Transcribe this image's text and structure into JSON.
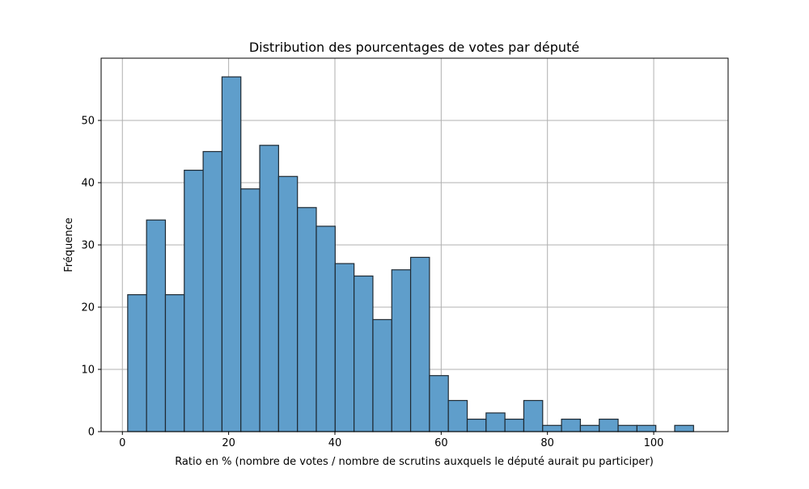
{
  "chart_data": {
    "type": "bar",
    "title": "Distribution des pourcentages de votes par député",
    "xlabel": "Ratio en % (nombre de votes / nombre de scrutins auxquels le député aurait pu participer)",
    "ylabel": "Fréquence",
    "xlim": [
      -4,
      114
    ],
    "ylim": [
      0,
      60
    ],
    "xticks": [
      0,
      20,
      40,
      60,
      80,
      100
    ],
    "yticks": [
      0,
      10,
      20,
      30,
      40,
      50
    ],
    "grid": true,
    "bar_color": "#5f9ecb",
    "edge_color": "#1f2a33",
    "bins": [
      {
        "x0": 1.0,
        "x1": 4.55,
        "value": 22
      },
      {
        "x0": 4.55,
        "x1": 8.1,
        "value": 34
      },
      {
        "x0": 8.1,
        "x1": 11.65,
        "value": 22
      },
      {
        "x0": 11.65,
        "x1": 15.2,
        "value": 42
      },
      {
        "x0": 15.2,
        "x1": 18.75,
        "value": 45
      },
      {
        "x0": 18.75,
        "x1": 22.3,
        "value": 57
      },
      {
        "x0": 22.3,
        "x1": 25.85,
        "value": 39
      },
      {
        "x0": 25.85,
        "x1": 29.4,
        "value": 46
      },
      {
        "x0": 29.4,
        "x1": 32.95,
        "value": 41
      },
      {
        "x0": 32.95,
        "x1": 36.5,
        "value": 36
      },
      {
        "x0": 36.5,
        "x1": 40.05,
        "value": 33
      },
      {
        "x0": 40.05,
        "x1": 43.6,
        "value": 27
      },
      {
        "x0": 43.6,
        "x1": 47.15,
        "value": 25
      },
      {
        "x0": 47.15,
        "x1": 50.7,
        "value": 18
      },
      {
        "x0": 50.7,
        "x1": 54.25,
        "value": 26
      },
      {
        "x0": 54.25,
        "x1": 57.8,
        "value": 28
      },
      {
        "x0": 57.8,
        "x1": 61.35,
        "value": 9
      },
      {
        "x0": 61.35,
        "x1": 64.9,
        "value": 5
      },
      {
        "x0": 64.9,
        "x1": 68.45,
        "value": 2
      },
      {
        "x0": 68.45,
        "x1": 72.0,
        "value": 3
      },
      {
        "x0": 72.0,
        "x1": 75.55,
        "value": 2
      },
      {
        "x0": 75.55,
        "x1": 79.1,
        "value": 5
      },
      {
        "x0": 79.1,
        "x1": 82.65,
        "value": 1
      },
      {
        "x0": 82.65,
        "x1": 86.2,
        "value": 2
      },
      {
        "x0": 86.2,
        "x1": 89.75,
        "value": 1
      },
      {
        "x0": 89.75,
        "x1": 93.3,
        "value": 2
      },
      {
        "x0": 93.3,
        "x1": 96.85,
        "value": 1
      },
      {
        "x0": 96.85,
        "x1": 100.4,
        "value": 1
      },
      {
        "x0": 100.4,
        "x1": 103.95,
        "value": 0
      },
      {
        "x0": 103.95,
        "x1": 107.5,
        "value": 1
      }
    ]
  }
}
